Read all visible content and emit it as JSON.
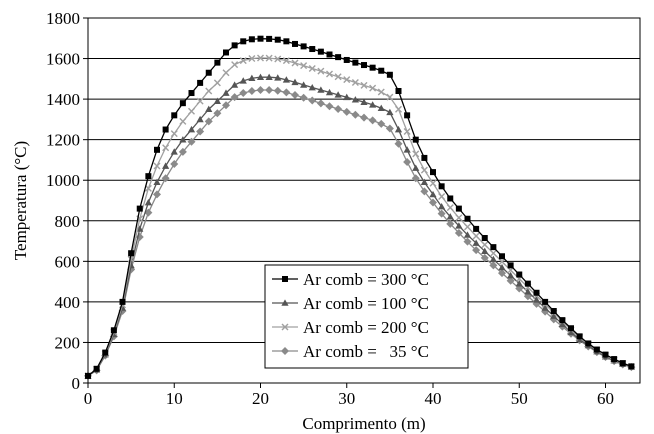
{
  "chart_data": {
    "type": "line",
    "title": "",
    "xlabel": "Comprimento (m)",
    "ylabel": "Temperatura (°C)",
    "xlim": [
      0,
      64
    ],
    "ylim": [
      0,
      1800
    ],
    "xticks": [
      0,
      10,
      20,
      30,
      40,
      50,
      60
    ],
    "yticks": [
      0,
      200,
      400,
      600,
      800,
      1000,
      1200,
      1400,
      1600,
      1800
    ],
    "grid": "horizontal",
    "legend_position": "bottom-center",
    "series": [
      {
        "name": "Ar comb = 300 °C",
        "marker": "square",
        "color": "#000000",
        "points": [
          [
            0,
            35
          ],
          [
            1,
            70
          ],
          [
            2,
            150
          ],
          [
            3,
            260
          ],
          [
            4,
            400
          ],
          [
            5,
            640
          ],
          [
            6,
            860
          ],
          [
            7,
            1020
          ],
          [
            8,
            1150
          ],
          [
            9,
            1250
          ],
          [
            10,
            1320
          ],
          [
            11,
            1380
          ],
          [
            12,
            1430
          ],
          [
            13,
            1480
          ],
          [
            14,
            1530
          ],
          [
            15,
            1580
          ],
          [
            16,
            1630
          ],
          [
            17,
            1665
          ],
          [
            18,
            1685
          ],
          [
            19,
            1695
          ],
          [
            20,
            1698
          ],
          [
            21,
            1697
          ],
          [
            22,
            1693
          ],
          [
            23,
            1685
          ],
          [
            24,
            1672
          ],
          [
            25,
            1660
          ],
          [
            26,
            1647
          ],
          [
            27,
            1634
          ],
          [
            28,
            1620
          ],
          [
            29,
            1607
          ],
          [
            30,
            1593
          ],
          [
            31,
            1580
          ],
          [
            32,
            1568
          ],
          [
            33,
            1555
          ],
          [
            34,
            1540
          ],
          [
            35,
            1520
          ],
          [
            36,
            1440
          ],
          [
            37,
            1320
          ],
          [
            38,
            1200
          ],
          [
            39,
            1110
          ],
          [
            40,
            1040
          ],
          [
            41,
            970
          ],
          [
            42,
            910
          ],
          [
            43,
            860
          ],
          [
            44,
            810
          ],
          [
            45,
            760
          ],
          [
            46,
            715
          ],
          [
            47,
            670
          ],
          [
            48,
            625
          ],
          [
            49,
            580
          ],
          [
            50,
            535
          ],
          [
            51,
            490
          ],
          [
            52,
            445
          ],
          [
            53,
            400
          ],
          [
            54,
            355
          ],
          [
            55,
            310
          ],
          [
            56,
            270
          ],
          [
            57,
            230
          ],
          [
            58,
            195
          ],
          [
            59,
            165
          ],
          [
            60,
            140
          ],
          [
            61,
            118
          ],
          [
            62,
            98
          ],
          [
            63,
            82
          ]
        ]
      },
      {
        "name": "Ar comb = 100 °C",
        "marker": "triangle",
        "color": "#555555",
        "points": [
          [
            0,
            35
          ],
          [
            1,
            65
          ],
          [
            2,
            140
          ],
          [
            3,
            240
          ],
          [
            4,
            370
          ],
          [
            5,
            580
          ],
          [
            6,
            760
          ],
          [
            7,
            890
          ],
          [
            8,
            990
          ],
          [
            9,
            1070
          ],
          [
            10,
            1140
          ],
          [
            11,
            1200
          ],
          [
            12,
            1250
          ],
          [
            13,
            1300
          ],
          [
            14,
            1350
          ],
          [
            15,
            1390
          ],
          [
            16,
            1430
          ],
          [
            17,
            1470
          ],
          [
            18,
            1490
          ],
          [
            19,
            1503
          ],
          [
            20,
            1508
          ],
          [
            21,
            1508
          ],
          [
            22,
            1505
          ],
          [
            23,
            1495
          ],
          [
            24,
            1483
          ],
          [
            25,
            1470
          ],
          [
            26,
            1457
          ],
          [
            27,
            1445
          ],
          [
            28,
            1433
          ],
          [
            29,
            1421
          ],
          [
            30,
            1409
          ],
          [
            31,
            1397
          ],
          [
            32,
            1385
          ],
          [
            33,
            1372
          ],
          [
            34,
            1355
          ],
          [
            35,
            1335
          ],
          [
            36,
            1250
          ],
          [
            37,
            1150
          ],
          [
            38,
            1060
          ],
          [
            39,
            990
          ],
          [
            40,
            930
          ],
          [
            41,
            870
          ],
          [
            42,
            820
          ],
          [
            43,
            775
          ],
          [
            44,
            730
          ],
          [
            45,
            690
          ],
          [
            46,
            650
          ],
          [
            47,
            610
          ],
          [
            48,
            570
          ],
          [
            49,
            530
          ],
          [
            50,
            490
          ],
          [
            51,
            450
          ],
          [
            52,
            410
          ],
          [
            53,
            370
          ],
          [
            54,
            330
          ],
          [
            55,
            290
          ],
          [
            56,
            250
          ],
          [
            57,
            215
          ],
          [
            58,
            185
          ],
          [
            59,
            155
          ],
          [
            60,
            130
          ],
          [
            61,
            110
          ],
          [
            62,
            93
          ],
          [
            63,
            80
          ]
        ]
      },
      {
        "name": "Ar comb = 200 °C",
        "marker": "cross",
        "color": "#a0a0a0",
        "points": [
          [
            0,
            35
          ],
          [
            1,
            68
          ],
          [
            2,
            145
          ],
          [
            3,
            250
          ],
          [
            4,
            385
          ],
          [
            5,
            610
          ],
          [
            6,
            810
          ],
          [
            7,
            960
          ],
          [
            8,
            1070
          ],
          [
            9,
            1160
          ],
          [
            10,
            1230
          ],
          [
            11,
            1290
          ],
          [
            12,
            1340
          ],
          [
            13,
            1390
          ],
          [
            14,
            1440
          ],
          [
            15,
            1480
          ],
          [
            16,
            1530
          ],
          [
            17,
            1570
          ],
          [
            18,
            1590
          ],
          [
            19,
            1600
          ],
          [
            20,
            1603
          ],
          [
            21,
            1602
          ],
          [
            22,
            1598
          ],
          [
            23,
            1590
          ],
          [
            24,
            1578
          ],
          [
            25,
            1565
          ],
          [
            26,
            1551
          ],
          [
            27,
            1538
          ],
          [
            28,
            1524
          ],
          [
            29,
            1510
          ],
          [
            30,
            1496
          ],
          [
            31,
            1482
          ],
          [
            32,
            1468
          ],
          [
            33,
            1454
          ],
          [
            34,
            1435
          ],
          [
            35,
            1410
          ],
          [
            36,
            1350
          ],
          [
            37,
            1240
          ],
          [
            38,
            1130
          ],
          [
            39,
            1050
          ],
          [
            40,
            985
          ],
          [
            41,
            920
          ],
          [
            42,
            865
          ],
          [
            43,
            815
          ],
          [
            44,
            770
          ],
          [
            45,
            725
          ],
          [
            46,
            682
          ],
          [
            47,
            640
          ],
          [
            48,
            598
          ],
          [
            49,
            556
          ],
          [
            50,
            514
          ],
          [
            51,
            472
          ],
          [
            52,
            430
          ],
          [
            53,
            388
          ],
          [
            54,
            346
          ],
          [
            55,
            304
          ],
          [
            56,
            262
          ],
          [
            57,
            225
          ],
          [
            58,
            192
          ],
          [
            59,
            162
          ],
          [
            60,
            136
          ],
          [
            61,
            114
          ],
          [
            62,
            96
          ],
          [
            63,
            81
          ]
        ]
      },
      {
        "name": "Ar comb =   35 °C",
        "marker": "diamond",
        "color": "#8a8a8a",
        "points": [
          [
            0,
            35
          ],
          [
            1,
            62
          ],
          [
            2,
            135
          ],
          [
            3,
            230
          ],
          [
            4,
            355
          ],
          [
            5,
            560
          ],
          [
            6,
            720
          ],
          [
            7,
            840
          ],
          [
            8,
            930
          ],
          [
            9,
            1010
          ],
          [
            10,
            1080
          ],
          [
            11,
            1140
          ],
          [
            12,
            1190
          ],
          [
            13,
            1240
          ],
          [
            14,
            1290
          ],
          [
            15,
            1330
          ],
          [
            16,
            1370
          ],
          [
            17,
            1410
          ],
          [
            18,
            1430
          ],
          [
            19,
            1440
          ],
          [
            20,
            1445
          ],
          [
            21,
            1445
          ],
          [
            22,
            1441
          ],
          [
            23,
            1433
          ],
          [
            24,
            1420
          ],
          [
            25,
            1407
          ],
          [
            26,
            1393
          ],
          [
            27,
            1379
          ],
          [
            28,
            1365
          ],
          [
            29,
            1351
          ],
          [
            30,
            1337
          ],
          [
            31,
            1323
          ],
          [
            32,
            1309
          ],
          [
            33,
            1295
          ],
          [
            34,
            1278
          ],
          [
            35,
            1255
          ],
          [
            36,
            1180
          ],
          [
            37,
            1090
          ],
          [
            38,
            1010
          ],
          [
            39,
            945
          ],
          [
            40,
            890
          ],
          [
            41,
            835
          ],
          [
            42,
            785
          ],
          [
            43,
            740
          ],
          [
            44,
            697
          ],
          [
            45,
            655
          ],
          [
            46,
            617
          ],
          [
            47,
            580
          ],
          [
            48,
            542
          ],
          [
            49,
            504
          ],
          [
            50,
            466
          ],
          [
            51,
            428
          ],
          [
            52,
            390
          ],
          [
            53,
            352
          ],
          [
            54,
            314
          ],
          [
            55,
            278
          ],
          [
            56,
            243
          ],
          [
            57,
            210
          ],
          [
            58,
            180
          ],
          [
            59,
            152
          ],
          [
            60,
            128
          ],
          [
            61,
            108
          ],
          [
            62,
            91
          ],
          [
            63,
            78
          ]
        ]
      }
    ]
  }
}
